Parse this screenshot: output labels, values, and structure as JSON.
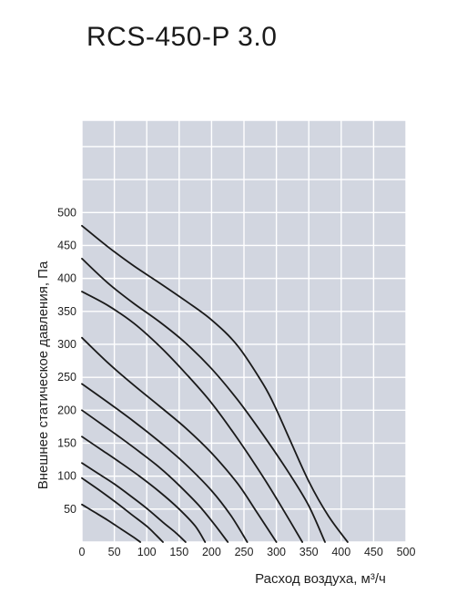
{
  "chart_data": {
    "type": "line",
    "title": "RCS-450-P 3.0",
    "xlabel": "Расход воздуха, м³/ч",
    "ylabel": "Внешнее статическое давления, Па",
    "xlim": [
      0,
      500
    ],
    "ylim": [
      0,
      640
    ],
    "xticks": [
      "0",
      "50",
      "100",
      "150",
      "200",
      "250",
      "300",
      "350",
      "400",
      "450",
      "500"
    ],
    "yticks": [
      "50",
      "100",
      "150",
      "200",
      "250",
      "300",
      "350",
      "400",
      "450",
      "500"
    ],
    "grid": true,
    "colors": {
      "plot_bg": "#d2d6e0",
      "grid": "#ffffff",
      "curve": "#1a1a1a"
    },
    "series": [
      {
        "x": [
          0,
          20,
          40,
          60,
          80,
          90
        ],
        "y": [
          57,
          45,
          33,
          20,
          7,
          0
        ]
      },
      {
        "x": [
          0,
          25,
          50,
          75,
          100,
          115,
          125
        ],
        "y": [
          97,
          80,
          62,
          43,
          24,
          10,
          0
        ]
      },
      {
        "x": [
          0,
          25,
          50,
          75,
          100,
          125,
          145,
          160
        ],
        "y": [
          120,
          104,
          88,
          70,
          51,
          30,
          14,
          0
        ]
      },
      {
        "x": [
          0,
          30,
          60,
          90,
          120,
          150,
          175,
          190
        ],
        "y": [
          160,
          140,
          120,
          99,
          76,
          50,
          24,
          0
        ]
      },
      {
        "x": [
          0,
          30,
          60,
          90,
          120,
          150,
          180,
          205,
          225
        ],
        "y": [
          200,
          179,
          158,
          136,
          113,
          86,
          56,
          26,
          0
        ]
      },
      {
        "x": [
          0,
          40,
          80,
          120,
          160,
          200,
          230,
          255
        ],
        "y": [
          240,
          212,
          183,
          152,
          118,
          78,
          40,
          0
        ]
      },
      {
        "x": [
          0,
          40,
          80,
          120,
          160,
          200,
          240,
          270,
          300
        ],
        "y": [
          310,
          272,
          238,
          206,
          173,
          135,
          89,
          45,
          0
        ]
      },
      {
        "x": [
          0,
          40,
          80,
          120,
          160,
          200,
          240,
          280,
          310,
          340
        ],
        "y": [
          380,
          359,
          332,
          297,
          256,
          211,
          157,
          98,
          50,
          0
        ]
      },
      {
        "x": [
          0,
          40,
          80,
          120,
          160,
          200,
          240,
          280,
          320,
          350,
          375
        ],
        "y": [
          430,
          393,
          362,
          334,
          302,
          263,
          216,
          162,
          104,
          55,
          0
        ]
      },
      {
        "x": [
          0,
          40,
          80,
          120,
          160,
          200,
          240,
          280,
          300,
          320,
          350,
          380,
          410
        ],
        "y": [
          480,
          448,
          419,
          393,
          366,
          337,
          298,
          239,
          201,
          157,
          92,
          40,
          0
        ]
      }
    ]
  }
}
